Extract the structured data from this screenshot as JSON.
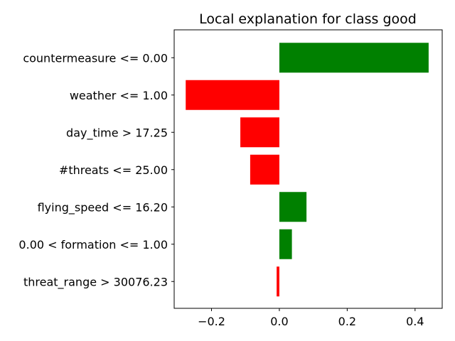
{
  "chart_data": {
    "type": "bar",
    "orientation": "horizontal",
    "title": "Local explanation for class good",
    "xlabel": "",
    "ylabel": "",
    "xlim": [
      -0.31,
      0.48
    ],
    "xticks": [
      -0.2,
      0.0,
      0.2,
      0.4
    ],
    "xtick_labels": [
      "−0.2",
      "0.0",
      "0.2",
      "0.4"
    ],
    "grid": false,
    "colors": {
      "positive": "#008000",
      "negative": "#ff0000"
    },
    "categories": [
      "countermeasure <= 0.00",
      "weather <= 1.00",
      "day_time > 17.25",
      "#threats <= 25.00",
      "flying_speed <= 16.20",
      "0.00 < formation <= 1.00",
      "threat_range > 30076.23"
    ],
    "values": [
      0.44,
      -0.276,
      -0.115,
      -0.086,
      0.08,
      0.037,
      -0.008
    ]
  }
}
